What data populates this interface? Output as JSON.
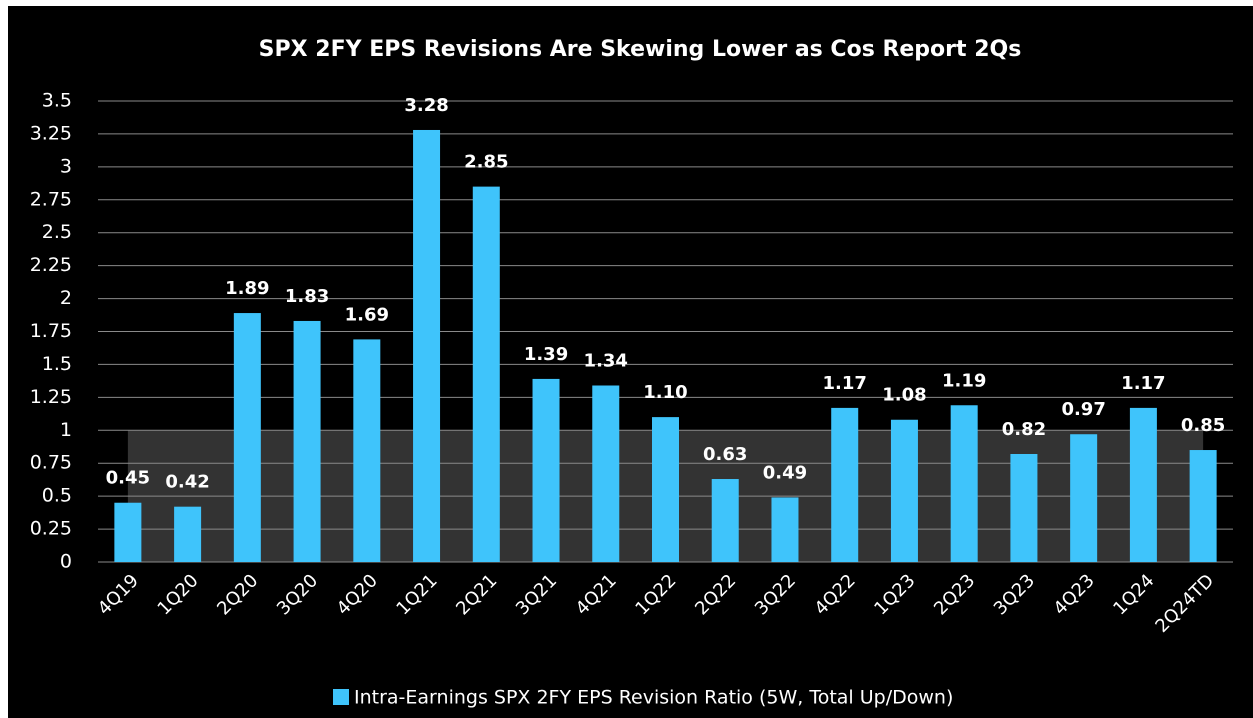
{
  "chart_data": {
    "type": "bar",
    "title": "SPX 2FY EPS Revisions Are Skewing Lower as Cos Report 2Qs",
    "categories": [
      "4Q19",
      "1Q20",
      "2Q20",
      "3Q20",
      "4Q20",
      "1Q21",
      "2Q21",
      "3Q21",
      "4Q21",
      "1Q22",
      "2Q22",
      "3Q22",
      "4Q22",
      "1Q23",
      "2Q23",
      "3Q23",
      "4Q23",
      "1Q24",
      "2Q24TD"
    ],
    "series": [
      {
        "name": "Intra-Earnings SPX 2FY EPS Revision Ratio (5W, Total Up/Down)",
        "color": "#3fc4fb",
        "values": [
          0.45,
          0.42,
          1.89,
          1.83,
          1.69,
          3.28,
          2.85,
          1.39,
          1.34,
          1.1,
          0.63,
          0.49,
          1.17,
          1.08,
          1.19,
          0.82,
          0.97,
          1.17,
          0.85
        ],
        "value_labels": [
          "0.45",
          "0.42",
          "1.89",
          "1.83",
          "1.69",
          "3.28",
          "2.85",
          "1.39",
          "1.34",
          "1.10",
          "0.63",
          "0.49",
          "1.17",
          "1.08",
          "1.19",
          "0.82",
          "0.97",
          "1.17",
          "0.85"
        ]
      }
    ],
    "ylim": [
      0,
      3.5
    ],
    "yticks": [
      0,
      0.25,
      0.5,
      0.75,
      1,
      1.25,
      1.5,
      1.75,
      2,
      2.25,
      2.5,
      2.75,
      3,
      3.25,
      3.5
    ],
    "grid": true,
    "shaded_band": {
      "from": 0,
      "to": 1,
      "color": "#333333"
    },
    "legend": "bottom"
  }
}
